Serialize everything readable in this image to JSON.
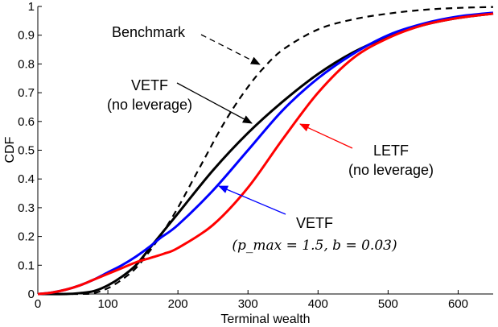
{
  "chart_data": {
    "type": "line",
    "xlabel": "Terminal wealth",
    "ylabel": "CDF",
    "xlim": [
      0,
      650
    ],
    "ylim": [
      0,
      1
    ],
    "xticks": [
      0,
      100,
      200,
      300,
      400,
      500,
      600
    ],
    "xtick_labels": [
      "0",
      "100",
      "200",
      "300",
      "400",
      "500",
      "600"
    ],
    "yticks": [
      0,
      0.1,
      0.2,
      0.3,
      0.4,
      0.5,
      0.6,
      0.7,
      0.8,
      0.9,
      1
    ],
    "ytick_labels": [
      "0",
      "0.1",
      "0.2",
      "0.3",
      "0.4",
      "0.5",
      "0.6",
      "0.7",
      "0.8",
      "0.9",
      "1"
    ],
    "grid": false,
    "series": [
      {
        "name": "Benchmark",
        "color": "#000000",
        "style": "dashed",
        "x": [
          0,
          60,
          80,
          100,
          120,
          140,
          160,
          180,
          200,
          220,
          240,
          260,
          280,
          300,
          320,
          350,
          400,
          450,
          500,
          550,
          600,
          650
        ],
        "y": [
          0,
          0,
          0.003,
          0.02,
          0.05,
          0.09,
          0.15,
          0.22,
          0.3,
          0.39,
          0.48,
          0.57,
          0.65,
          0.72,
          0.78,
          0.85,
          0.92,
          0.955,
          0.975,
          0.988,
          0.995,
          0.998
        ]
      },
      {
        "name": "VETF (no leverage)",
        "color": "#000000",
        "style": "solid",
        "x": [
          0,
          40,
          60,
          80,
          100,
          120,
          140,
          160,
          175,
          200,
          250,
          300,
          350,
          400,
          450,
          500,
          550,
          600,
          650
        ],
        "y": [
          0,
          0,
          0.003,
          0.01,
          0.03,
          0.06,
          0.1,
          0.16,
          0.205,
          0.28,
          0.43,
          0.56,
          0.67,
          0.765,
          0.84,
          0.895,
          0.935,
          0.96,
          0.975
        ]
      },
      {
        "name": "VETF (p_max = 1.5, b = 0.03)",
        "color": "#0000ff",
        "style": "solid",
        "x": [
          0,
          20,
          40,
          60,
          80,
          100,
          120,
          140,
          160,
          175,
          200,
          250,
          300,
          350,
          400,
          450,
          500,
          550,
          600,
          650
        ],
        "y": [
          0,
          0.005,
          0.015,
          0.03,
          0.05,
          0.075,
          0.1,
          0.13,
          0.165,
          0.195,
          0.24,
          0.36,
          0.5,
          0.64,
          0.75,
          0.835,
          0.9,
          0.94,
          0.965,
          0.978
        ]
      },
      {
        "name": "LETF (no leverage)",
        "color": "#ff0000",
        "style": "solid",
        "x": [
          0,
          20,
          40,
          60,
          80,
          100,
          120,
          140,
          160,
          180,
          200,
          250,
          300,
          350,
          400,
          450,
          500,
          550,
          600,
          650
        ],
        "y": [
          0,
          0.005,
          0.015,
          0.03,
          0.05,
          0.07,
          0.09,
          0.11,
          0.125,
          0.14,
          0.16,
          0.24,
          0.37,
          0.54,
          0.7,
          0.82,
          0.89,
          0.935,
          0.96,
          0.975
        ]
      }
    ],
    "annotations": [
      {
        "id": "benchmark",
        "lines": [
          "Benchmark"
        ],
        "color": "#000000",
        "arrow_style": "dashed",
        "points_to": [
          320,
          0.78
        ]
      },
      {
        "id": "vetf-nolev",
        "lines": [
          "VETF",
          "(no leverage)"
        ],
        "color": "#000000",
        "arrow_style": "solid",
        "points_to": [
          310,
          0.57
        ]
      },
      {
        "id": "letf-nolev",
        "lines": [
          "LETF",
          "(no leverage)"
        ],
        "color": "#ff0000",
        "arrow_style": "solid",
        "points_to": [
          370,
          0.58
        ]
      },
      {
        "id": "vetf-lev",
        "lines": [
          "VETF",
          "(p_max = 1.5, b = 0.03)"
        ],
        "color": "#0000ff",
        "arrow_style": "solid",
        "points_to": [
          250,
          0.37
        ]
      }
    ]
  }
}
